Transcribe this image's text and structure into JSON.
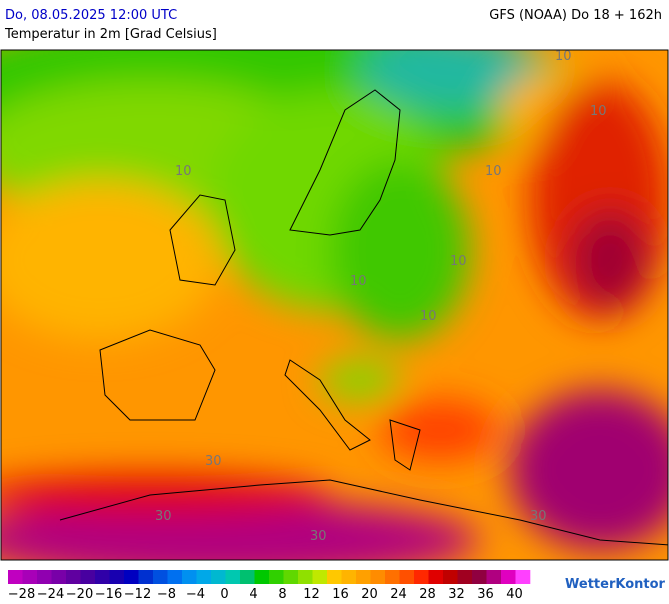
{
  "header": {
    "datetime": "Do, 08.05.2025 12:00 UTC",
    "subtitle": "Temperatur in 2m [Grad Celsius]",
    "model": "GFS (NOAA) Do 18 + 162h"
  },
  "map": {
    "contour_labels": [
      "10",
      "10",
      "10",
      "10",
      "10",
      "10",
      "10",
      "30",
      "30",
      "30",
      "30"
    ]
  },
  "legend": {
    "labels": [
      "−28",
      "−24",
      "−20",
      "−16",
      "−12",
      "−8",
      "−4",
      "0",
      "4",
      "8",
      "12",
      "16",
      "20",
      "24",
      "28",
      "32",
      "36",
      "40"
    ],
    "colors": [
      "#c000c0",
      "#a800b8",
      "#9000b0",
      "#7800a8",
      "#6000a0",
      "#4800a0",
      "#3000a8",
      "#1800b0",
      "#0000c0",
      "#0030d0",
      "#0050e0",
      "#0070f0",
      "#0090f0",
      "#00a8e8",
      "#00b8d0",
      "#00c8b0",
      "#00c070",
      "#00c800",
      "#30d000",
      "#60d800",
      "#90e000",
      "#c0e800",
      "#ffc800",
      "#ffb400",
      "#ffa000",
      "#ff8c00",
      "#ff7000",
      "#ff5000",
      "#ff2800",
      "#e00000",
      "#c00000",
      "#a00020",
      "#900040",
      "#b00080",
      "#e000c0",
      "#ff40ff"
    ]
  },
  "logo": "WetterKontor"
}
